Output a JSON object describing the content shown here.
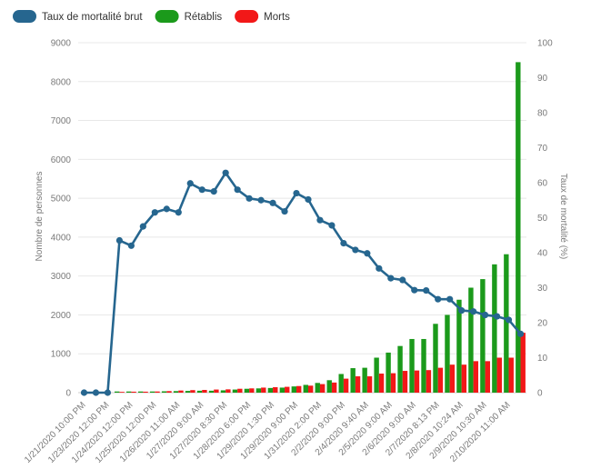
{
  "chart_data": {
    "type": "bar",
    "title": "",
    "legend_position": "top-left",
    "grid": true,
    "x": [
      "1/21/2020 10:00 PM",
      "",
      "1/23/2020 12:00 PM",
      "",
      "1/24/2020 12:00 PM",
      "",
      "1/25/2020 12:00 PM",
      "",
      "1/26/2020 11:00 AM",
      "",
      "1/27/2020 9:00 AM",
      "",
      "1/27/2020 8:30 PM",
      "",
      "1/28/2020 6:00 PM",
      "",
      "1/29/2020 1:30 PM",
      "",
      "1/29/2020 9:00 PM",
      "",
      "1/31/2020 2:00 PM",
      "",
      "2/2/2020 9:00 PM",
      "",
      "2/4/2020 9:40 AM",
      "",
      "2/5/2020 9:00 AM",
      "",
      "2/6/2020 9:00 AM",
      "",
      "2/7/2020 8:13 PM",
      "",
      "2/8/2020 10:24 AM",
      "",
      "2/9/2020 10:30 AM",
      "",
      "2/10/2020 11:00 AM",
      ""
    ],
    "series": [
      {
        "name": "Taux de mortalité brut",
        "kind": "line",
        "axis": "right",
        "color": "#26668f",
        "values": [
          0,
          0,
          0,
          43.5,
          42,
          47.5,
          51.5,
          52.5,
          51.5,
          59.8,
          58,
          57.5,
          62.8,
          58,
          55.5,
          55,
          54.2,
          51.8,
          57,
          55.2,
          49.3,
          47.8,
          42.7,
          40.8,
          39.8,
          35.5,
          32.7,
          32.2,
          29.3,
          29.2,
          26.7,
          26.7,
          23.5,
          23.2,
          22.2,
          21.8,
          20.8,
          16.8
        ]
      },
      {
        "name": "Rétablis",
        "kind": "bar",
        "axis": "left",
        "color": "#1b9a1b",
        "values": [
          0,
          0,
          0,
          30,
          30,
          30,
          30,
          35,
          40,
          45,
          50,
          50,
          60,
          80,
          100,
          110,
          120,
          130,
          160,
          200,
          250,
          320,
          480,
          630,
          640,
          900,
          1030,
          1200,
          1380,
          1380,
          1770,
          2000,
          2390,
          2700,
          2920,
          3300,
          3560,
          8500
        ]
      },
      {
        "name": "Morts",
        "kind": "bar",
        "axis": "left",
        "color": "#f21818",
        "values": [
          0,
          0,
          0,
          20,
          25,
          25,
          30,
          40,
          55,
          65,
          70,
          80,
          85,
          100,
          110,
          130,
          140,
          150,
          170,
          180,
          220,
          260,
          360,
          420,
          420,
          490,
          500,
          560,
          570,
          580,
          640,
          720,
          720,
          810,
          810,
          900,
          900,
          1540
        ]
      }
    ],
    "y_left": {
      "label": "Nombre de personnes",
      "range": [
        0,
        9000
      ],
      "ticks": [
        "0",
        "1000",
        "2000",
        "3000",
        "4000",
        "5000",
        "6000",
        "7000",
        "8000",
        "9000"
      ]
    },
    "y_right": {
      "label": "Taux de mortalité (%)",
      "range": [
        0,
        100
      ],
      "ticks": [
        "0",
        "10",
        "20",
        "30",
        "40",
        "50",
        "60",
        "70",
        "80",
        "90",
        "100"
      ]
    }
  }
}
